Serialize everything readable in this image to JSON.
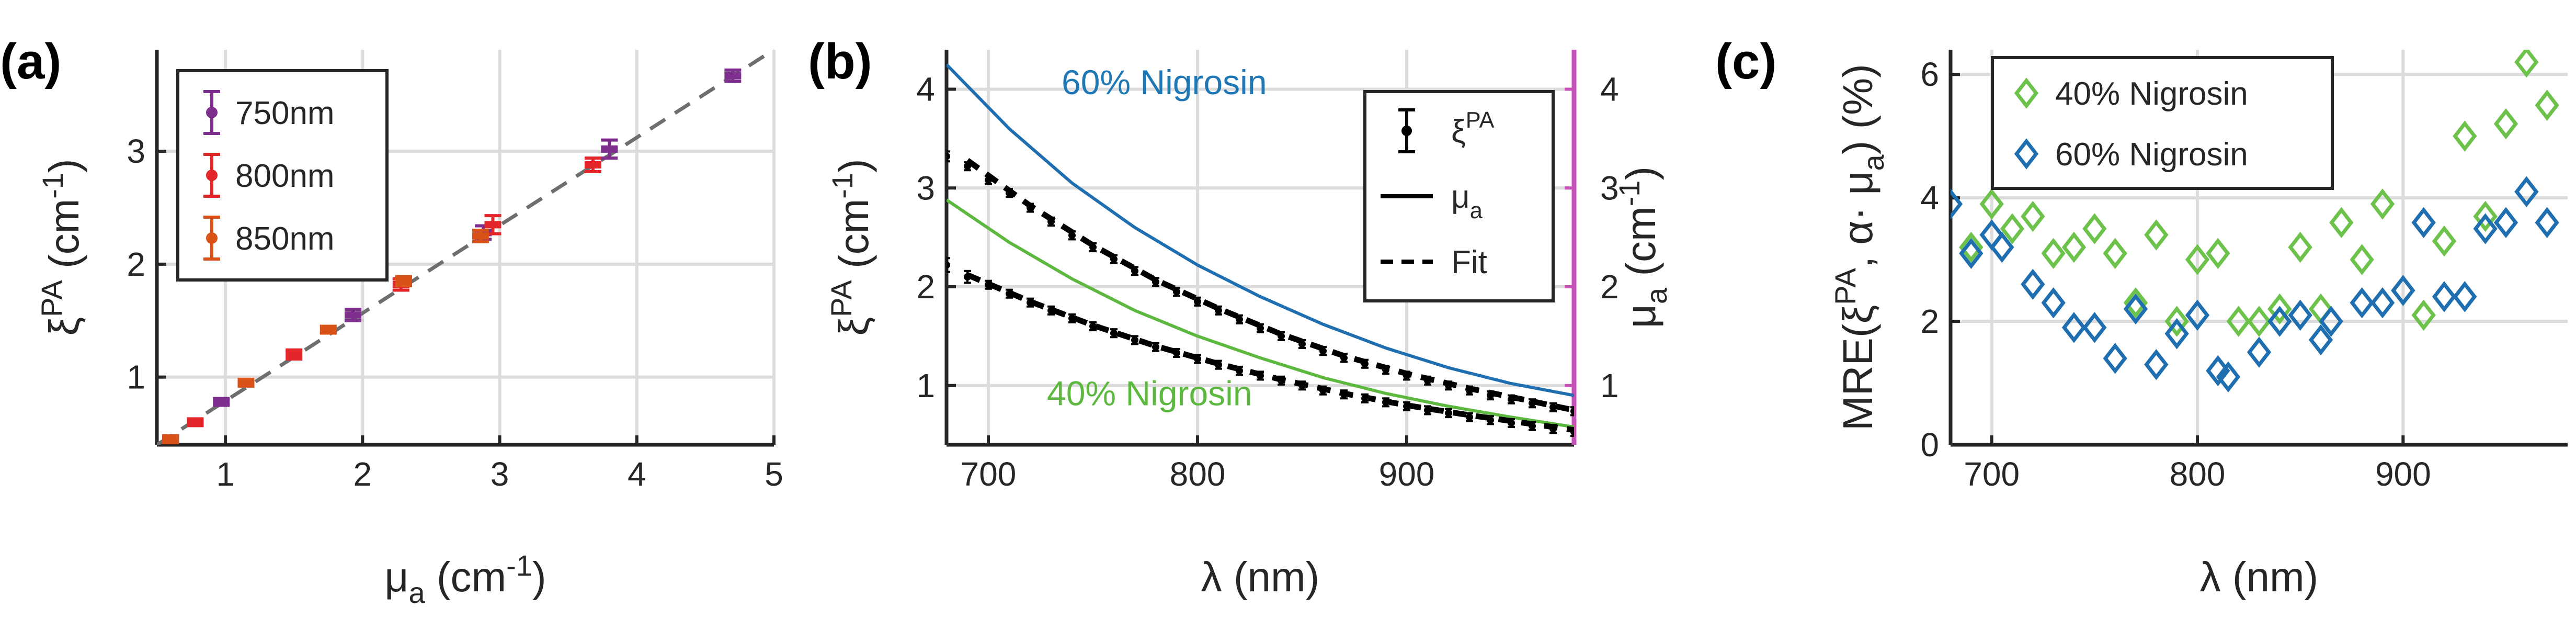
{
  "chart_data": [
    {
      "panel": "(a)",
      "type": "scatter",
      "xlabel": "μ",
      "xlabel_sub": "a",
      "xlabel_unit": "(cm",
      "xlabel_sup": "-1",
      "xlabel_close": ")",
      "ylabel": "ξ",
      "ylabel_sup": "PA",
      "ylabel_unit": "(cm",
      "ylabel_unit_sup": "-1",
      "ylabel_close": ")",
      "xlim": [
        0.5,
        5
      ],
      "ylim": [
        0.4,
        3.9
      ],
      "xticks": [
        1,
        2,
        3,
        4,
        5
      ],
      "yticks": [
        1,
        2,
        3
      ],
      "grid": true,
      "legend_position": "top-left",
      "reference_line": {
        "x": [
          0.5,
          5
        ],
        "y": [
          0.4,
          3.9
        ],
        "color": "#6e6e6e",
        "style": "dashed"
      },
      "series": [
        {
          "name": "750nm",
          "color": "#7e2f8e",
          "x": [
            0.6,
            0.97,
            1.93,
            2.88,
            3.8,
            4.7
          ],
          "y": [
            0.45,
            0.78,
            1.55,
            2.28,
            3.02,
            3.67
          ],
          "err": [
            0.03,
            0.03,
            0.05,
            0.06,
            0.08,
            0.05
          ]
        },
        {
          "name": "800nm",
          "color": "#e3262a",
          "x": [
            0.78,
            1.5,
            2.28,
            2.95,
            3.68
          ],
          "y": [
            0.6,
            1.2,
            1.82,
            2.35,
            2.88
          ],
          "err": [
            0.03,
            0.04,
            0.05,
            0.08,
            0.06
          ]
        },
        {
          "name": "850nm",
          "color": "#d95319",
          "x": [
            0.6,
            1.15,
            1.75,
            2.3,
            2.86
          ],
          "y": [
            0.45,
            0.95,
            1.42,
            1.85,
            2.25
          ],
          "err": [
            0.03,
            0.03,
            0.03,
            0.04,
            0.05
          ]
        }
      ]
    },
    {
      "panel": "(b)",
      "type": "line",
      "xlabel": "λ (nm)",
      "ylabel": "ξ",
      "ylabel_sup": "PA",
      "ylabel_unit": "(cm",
      "ylabel_unit_sup": "-1",
      "ylabel_close": ")",
      "y2label": "μ",
      "y2label_sub": "a",
      "y2label_unit": "(cm",
      "y2label_sup": "-1",
      "y2label_close": ")",
      "xlim": [
        680,
        980
      ],
      "ylim": [
        0.4,
        4.4
      ],
      "y2lim": [
        0.4,
        4.4
      ],
      "xticks": [
        700,
        800,
        900
      ],
      "yticks": [
        1,
        2,
        3,
        4
      ],
      "y2ticks": [
        1,
        2,
        3,
        4
      ],
      "y2_color": "#c453b5",
      "grid": true,
      "legend_position": "top-right",
      "legend": [
        {
          "label": "ξ",
          "label_sup": "PA",
          "style": "errorbar",
          "color": "#000000"
        },
        {
          "label": "μ",
          "label_sub": "a",
          "style": "solid",
          "color": "#000000"
        },
        {
          "label": "Fit",
          "style": "dashed",
          "color": "#000000"
        }
      ],
      "annotations": [
        {
          "text": "60% Nigrosin",
          "color": "#1f77b4",
          "x": 735,
          "y": 3.95
        },
        {
          "text": "40% Nigrosin",
          "color": "#5cb83e",
          "x": 728,
          "y": 0.8
        }
      ],
      "series": [
        {
          "name": "60% Nigrosin μa",
          "color": "#1f6fb0",
          "style": "solid",
          "x": [
            680,
            710,
            740,
            770,
            800,
            830,
            860,
            890,
            920,
            950,
            980
          ],
          "y": [
            4.25,
            3.6,
            3.05,
            2.6,
            2.22,
            1.9,
            1.62,
            1.38,
            1.18,
            1.02,
            0.9
          ]
        },
        {
          "name": "40% Nigrosin μa",
          "color": "#5cb83e",
          "style": "solid",
          "x": [
            680,
            710,
            740,
            770,
            800,
            830,
            860,
            890,
            920,
            950,
            980
          ],
          "y": [
            2.88,
            2.45,
            2.08,
            1.76,
            1.5,
            1.28,
            1.08,
            0.92,
            0.79,
            0.68,
            0.58
          ]
        },
        {
          "name": "60% Nigrosin ξPA",
          "color": "#000000",
          "style": "errorbar",
          "x": [
            680,
            690,
            700,
            710,
            720,
            730,
            740,
            750,
            760,
            770,
            780,
            790,
            800,
            810,
            820,
            830,
            840,
            850,
            860,
            870,
            880,
            890,
            900,
            910,
            920,
            930,
            940,
            950,
            960,
            970,
            980
          ],
          "y": [
            3.32,
            3.22,
            3.08,
            2.95,
            2.8,
            2.66,
            2.52,
            2.4,
            2.28,
            2.16,
            2.05,
            1.95,
            1.85,
            1.76,
            1.67,
            1.58,
            1.5,
            1.42,
            1.35,
            1.28,
            1.22,
            1.16,
            1.1,
            1.05,
            1.0,
            0.95,
            0.9,
            0.86,
            0.82,
            0.78,
            0.74
          ],
          "err": [
            0.05,
            0.04,
            0.04,
            0.04,
            0.04,
            0.04,
            0.04,
            0.04,
            0.04,
            0.04,
            0.04,
            0.04,
            0.04,
            0.04,
            0.04,
            0.04,
            0.04,
            0.04,
            0.04,
            0.04,
            0.04,
            0.04,
            0.04,
            0.04,
            0.04,
            0.04,
            0.04,
            0.04,
            0.04,
            0.04,
            0.04
          ]
        },
        {
          "name": "60% Nigrosin fit",
          "color": "#000000",
          "style": "dashed",
          "x": [
            690,
            720,
            750,
            780,
            810,
            840,
            870,
            900,
            930,
            960,
            980
          ],
          "y": [
            3.28,
            2.82,
            2.42,
            2.07,
            1.78,
            1.52,
            1.3,
            1.12,
            0.97,
            0.84,
            0.75
          ]
        },
        {
          "name": "40% Nigrosin ξPA",
          "color": "#000000",
          "style": "errorbar",
          "x": [
            680,
            690,
            700,
            710,
            720,
            730,
            740,
            750,
            760,
            770,
            780,
            790,
            800,
            810,
            820,
            830,
            840,
            850,
            860,
            870,
            880,
            890,
            900,
            910,
            920,
            930,
            940,
            950,
            960,
            970,
            980
          ],
          "y": [
            2.22,
            2.1,
            2.02,
            1.93,
            1.84,
            1.76,
            1.68,
            1.6,
            1.53,
            1.46,
            1.39,
            1.33,
            1.27,
            1.21,
            1.15,
            1.1,
            1.05,
            1.0,
            0.95,
            0.91,
            0.87,
            0.83,
            0.79,
            0.75,
            0.72,
            0.68,
            0.65,
            0.62,
            0.59,
            0.56,
            0.53
          ],
          "err": [
            0.07,
            0.06,
            0.04,
            0.04,
            0.04,
            0.04,
            0.04,
            0.04,
            0.04,
            0.04,
            0.04,
            0.04,
            0.04,
            0.04,
            0.04,
            0.04,
            0.04,
            0.04,
            0.04,
            0.04,
            0.04,
            0.04,
            0.04,
            0.04,
            0.04,
            0.04,
            0.04,
            0.04,
            0.04,
            0.04,
            0.04
          ]
        },
        {
          "name": "40% Nigrosin fit",
          "color": "#000000",
          "style": "dashed",
          "x": [
            690,
            720,
            750,
            780,
            810,
            840,
            870,
            900,
            930,
            960,
            980
          ],
          "y": [
            2.12,
            1.85,
            1.61,
            1.4,
            1.22,
            1.06,
            0.92,
            0.8,
            0.7,
            0.61,
            0.55
          ]
        }
      ]
    },
    {
      "panel": "(c)",
      "type": "scatter",
      "xlabel": "λ (nm)",
      "ylabel": "MRE(ξ",
      "ylabel_sup": "PA",
      "ylabel_mid": ", α· μ",
      "ylabel_sub": "a",
      "ylabel_close": ") (%)",
      "xlim": [
        680,
        980
      ],
      "ylim": [
        0,
        6.4
      ],
      "xticks": [
        700,
        800,
        900
      ],
      "yticks": [
        0,
        2,
        4,
        6
      ],
      "grid": true,
      "legend_position": "top-left",
      "series": [
        {
          "name": "40% Nigrosin",
          "color": "#6cc24a",
          "marker": "diamond",
          "x": [
            690,
            700,
            710,
            720,
            730,
            740,
            750,
            760,
            770,
            780,
            790,
            800,
            810,
            820,
            830,
            840,
            850,
            860,
            870,
            880,
            890,
            900,
            910,
            920,
            930,
            940,
            950,
            960,
            970
          ],
          "y": [
            3.2,
            3.9,
            3.5,
            3.7,
            3.1,
            3.2,
            3.5,
            3.1,
            2.3,
            3.4,
            2.0,
            3.0,
            3.1,
            2.0,
            2.0,
            2.2,
            3.2,
            2.2,
            3.6,
            3.0,
            3.9,
            2.5,
            2.1,
            3.3,
            5.0,
            3.7,
            5.2,
            6.2,
            5.5
          ]
        },
        {
          "name": "60% Nigrosin",
          "color": "#1f6fb0",
          "marker": "diamond",
          "x": [
            680,
            690,
            700,
            705,
            720,
            730,
            740,
            750,
            760,
            770,
            780,
            790,
            800,
            810,
            815,
            830,
            840,
            850,
            860,
            865,
            880,
            890,
            900,
            910,
            920,
            930,
            940,
            950,
            960,
            970
          ],
          "y": [
            3.9,
            3.1,
            3.4,
            3.2,
            2.6,
            2.3,
            1.9,
            1.9,
            1.4,
            2.2,
            1.3,
            1.8,
            2.1,
            1.2,
            1.1,
            1.5,
            2.0,
            2.1,
            1.7,
            2.0,
            2.3,
            2.3,
            2.5,
            3.6,
            2.4,
            2.4,
            3.5,
            3.6,
            4.1,
            3.6
          ]
        }
      ]
    }
  ]
}
